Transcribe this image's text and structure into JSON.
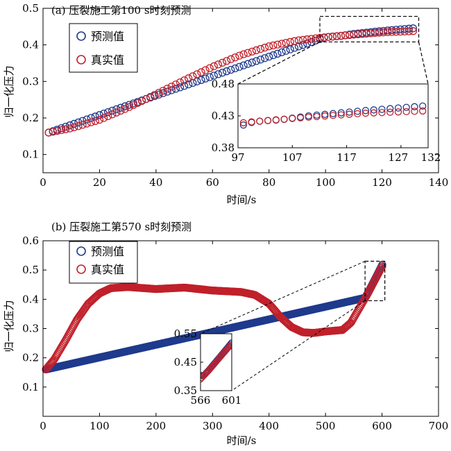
{
  "colors": {
    "predicted": "#1f3a8c",
    "actual": "#c0202a",
    "axis": "#000000"
  },
  "chart_data": [
    {
      "type": "scatter",
      "title": "(a) 压裂施工第100 s时刻预测",
      "xlabel": "时间/s",
      "ylabel": "归一化压力",
      "xlim": [
        0,
        140
      ],
      "ylim": [
        0.05,
        0.5
      ],
      "xticks": [
        0,
        20,
        40,
        60,
        80,
        100,
        120,
        140
      ],
      "yticks": [
        0.1,
        0.2,
        0.3,
        0.4,
        0.5
      ],
      "xtick_labels": [
        "0",
        "20",
        "40",
        "60",
        "80",
        "100",
        "120",
        "140"
      ],
      "ytick_labels": [
        "0.1",
        "0.2",
        "0.3",
        "0.4",
        "0.5"
      ],
      "legend": {
        "placement": "top-left",
        "entries": [
          "预测值",
          "真实值"
        ]
      },
      "x_start": 2,
      "x_end": 132,
      "x_step": 1.5,
      "actual_curve": {
        "x": [
          2,
          10,
          20,
          30,
          40,
          50,
          60,
          70,
          80,
          90,
          100,
          110,
          120,
          132
        ],
        "y": [
          0.16,
          0.172,
          0.195,
          0.228,
          0.265,
          0.303,
          0.34,
          0.372,
          0.396,
          0.412,
          0.421,
          0.428,
          0.434,
          0.438
        ]
      },
      "predicted_curve": {
        "x": [
          2,
          100,
          105,
          110,
          120,
          132
        ],
        "y": [
          0.16,
          0.421,
          0.424,
          0.43,
          0.438,
          0.446
        ]
      },
      "predicted_from": 100,
      "inset": {
        "xlim": [
          97,
          132
        ],
        "ylim": [
          0.38,
          0.48
        ],
        "xticks": [
          97,
          107,
          117,
          127,
          132
        ],
        "yticks": [
          0.38,
          0.43,
          0.48
        ],
        "xtick_labels": [
          "97",
          "107",
          "117",
          "127",
          "132"
        ],
        "ytick_labels": [
          "0.38",
          "0.43",
          "0.48"
        ],
        "source_box": {
          "x": [
            98,
            133
          ],
          "y": [
            0.408,
            0.478
          ]
        }
      }
    },
    {
      "type": "scatter",
      "title": "(b) 压裂施工第570 s时刻预测",
      "xlabel": "时间/s",
      "ylabel": "归一化压力",
      "xlim": [
        0,
        700
      ],
      "ylim": [
        0.0,
        0.6
      ],
      "xticks": [
        0,
        100,
        200,
        300,
        400,
        500,
        600,
        700
      ],
      "yticks": [
        0.1,
        0.2,
        0.3,
        0.4,
        0.5,
        0.6
      ],
      "xtick_labels": [
        "0",
        "100",
        "200",
        "300",
        "400",
        "500",
        "600",
        "700"
      ],
      "ytick_labels": [
        "0.1",
        "0.2",
        "0.3",
        "0.4",
        "0.5",
        "0.6"
      ],
      "legend": {
        "placement": "top-left",
        "entries": [
          "预测值",
          "真实值"
        ]
      },
      "x_start": 5,
      "x_end": 601,
      "x_step": 1.5,
      "actual_curve": {
        "x": [
          5,
          20,
          40,
          60,
          80,
          100,
          120,
          150,
          200,
          250,
          300,
          350,
          375,
          400,
          420,
          440,
          460,
          480,
          500,
          530,
          545,
          560,
          575,
          590,
          601
        ],
        "y": [
          0.16,
          0.195,
          0.26,
          0.33,
          0.385,
          0.42,
          0.438,
          0.442,
          0.435,
          0.44,
          0.43,
          0.425,
          0.415,
          0.385,
          0.34,
          0.305,
          0.287,
          0.285,
          0.29,
          0.295,
          0.32,
          0.37,
          0.42,
          0.475,
          0.515
        ]
      },
      "predicted_curve": {
        "x": [
          5,
          570,
          575,
          590,
          601
        ],
        "y": [
          0.16,
          0.405,
          0.422,
          0.478,
          0.52
        ]
      },
      "predicted_from": 570,
      "inset": {
        "xlim": [
          566,
          601
        ],
        "ylim": [
          0.35,
          0.55
        ],
        "xticks": [
          566,
          601
        ],
        "yticks": [
          0.35,
          0.45,
          0.55
        ],
        "xtick_labels": [
          "566",
          "601"
        ],
        "ytick_labels": [
          "0.35",
          "0.45",
          "0.55"
        ],
        "source_box": {
          "x": [
            570,
            605
          ],
          "y": [
            0.395,
            0.53
          ]
        }
      }
    }
  ]
}
